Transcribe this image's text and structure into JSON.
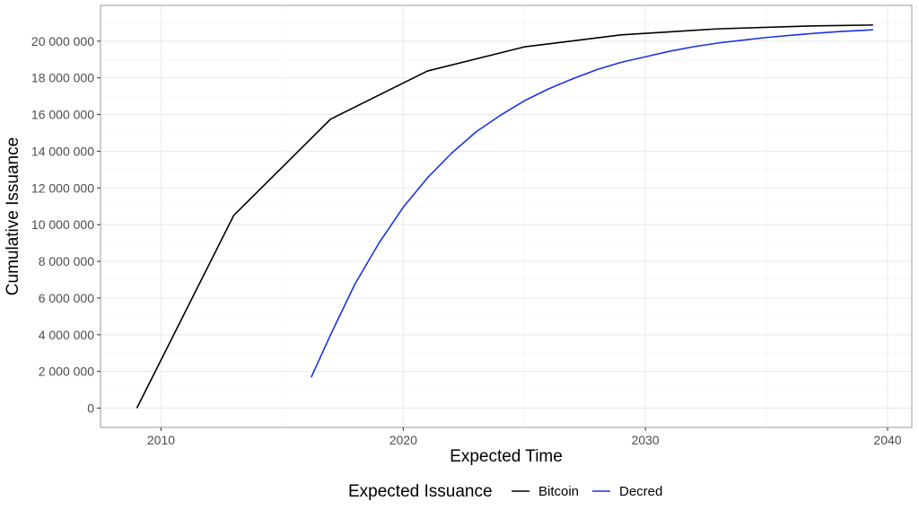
{
  "chart_data": {
    "type": "line",
    "title": "",
    "xlabel": "Expected Time",
    "ylabel": "Cumulative Issuance",
    "xlim": [
      2007.5,
      2041
    ],
    "ylim": [
      -1050000,
      21950000
    ],
    "x_ticks": [
      2010,
      2020,
      2030,
      2040
    ],
    "x_tick_labels": [
      "2010",
      "2020",
      "2030",
      "2040"
    ],
    "y_ticks": [
      0,
      2000000,
      4000000,
      6000000,
      8000000,
      10000000,
      12000000,
      14000000,
      16000000,
      18000000,
      20000000
    ],
    "y_tick_labels": [
      "0",
      "2 000 000",
      "4 000 000",
      "6 000 000",
      "8 000 000",
      "10 000 000",
      "12 000 000",
      "14 000 000",
      "16 000 000",
      "18 000 000",
      "20 000 000"
    ],
    "grid": true,
    "legend": {
      "title": "Expected Issuance",
      "position": "bottom",
      "entries": [
        "Bitcoin",
        "Decred"
      ]
    },
    "series": [
      {
        "name": "Bitcoin",
        "color": "#000000",
        "points": [
          [
            2009.0,
            0
          ],
          [
            2013.0,
            10500000
          ],
          [
            2017.0,
            15750000
          ],
          [
            2021.0,
            18375000
          ],
          [
            2025.0,
            19687500
          ],
          [
            2029.0,
            20343750
          ],
          [
            2033.0,
            20671875
          ],
          [
            2037.0,
            20835938
          ],
          [
            2039.4,
            20880000
          ]
        ]
      },
      {
        "name": "Decred",
        "color": "#1a33e6",
        "points": [
          [
            2016.2,
            1680000
          ],
          [
            2017.0,
            4000000
          ],
          [
            2018.0,
            6750000
          ],
          [
            2019.0,
            9000000
          ],
          [
            2020.0,
            10950000
          ],
          [
            2021.0,
            12550000
          ],
          [
            2022.0,
            13900000
          ],
          [
            2023.0,
            15050000
          ],
          [
            2024.0,
            15950000
          ],
          [
            2025.0,
            16750000
          ],
          [
            2026.0,
            17400000
          ],
          [
            2027.0,
            17950000
          ],
          [
            2028.0,
            18450000
          ],
          [
            2029.0,
            18850000
          ],
          [
            2030.0,
            19150000
          ],
          [
            2031.0,
            19450000
          ],
          [
            2032.0,
            19700000
          ],
          [
            2033.0,
            19900000
          ],
          [
            2034.0,
            20050000
          ],
          [
            2035.0,
            20200000
          ],
          [
            2036.0,
            20320000
          ],
          [
            2037.0,
            20430000
          ],
          [
            2038.0,
            20520000
          ],
          [
            2039.4,
            20620000
          ]
        ]
      }
    ]
  }
}
